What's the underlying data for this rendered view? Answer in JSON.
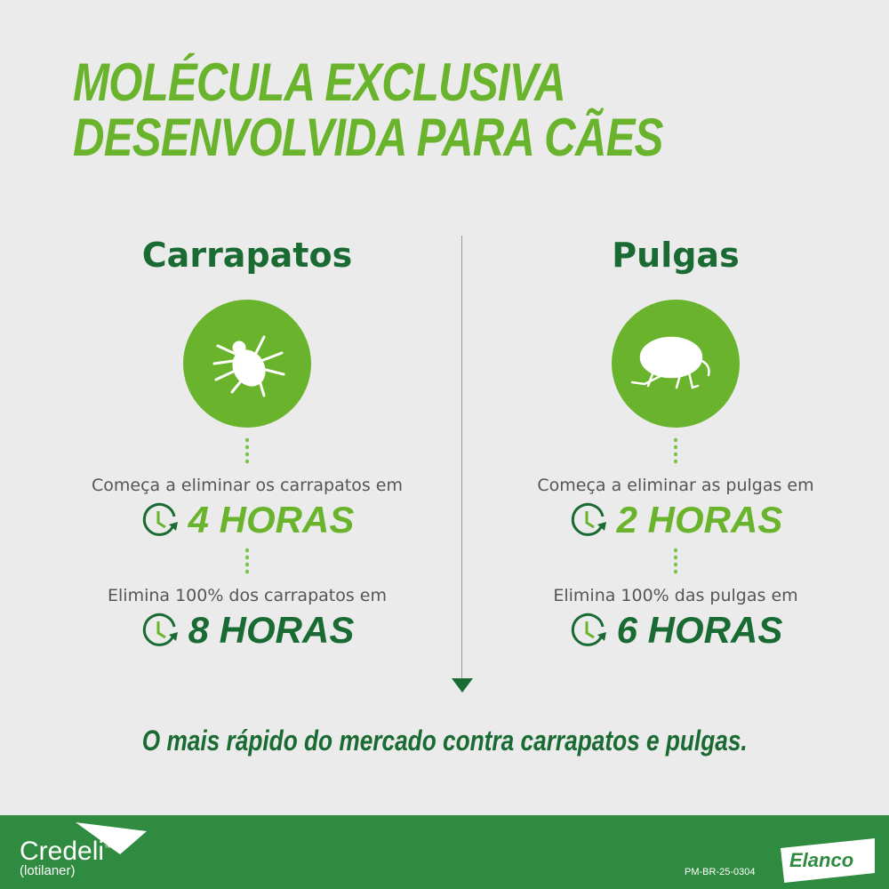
{
  "title": {
    "line1": "MOLÉCULA EXCLUSIVA",
    "line2": "DESENVOLVIDA PARA CÃES"
  },
  "colors": {
    "light_green": "#6ab42d",
    "dark_green": "#1a6b33",
    "footer": "#2e8b3f",
    "background": "#ebebeb"
  },
  "columns": [
    {
      "heading": "Carrapatos",
      "icon": "tick-icon",
      "first_desc": "Começa a eliminar os carrapatos em",
      "first_value": "4 HORAS",
      "second_desc": "Elimina  100% dos carrapatos em",
      "second_value": "8 HORAS"
    },
    {
      "heading": "Pulgas",
      "icon": "flea-icon",
      "first_desc": "Começa a eliminar as pulgas em",
      "first_value": "2 HORAS",
      "second_desc": "Elimina  100% das pulgas em",
      "second_value": "6 HORAS"
    }
  ],
  "tagline": "O mais rápido do mercado contra carrapatos e pulgas.",
  "footer": {
    "brand": "Credeli",
    "tm": "™",
    "generic": "(lotilaner)",
    "code": "PM-BR-25-0304",
    "company": "Elanco"
  }
}
